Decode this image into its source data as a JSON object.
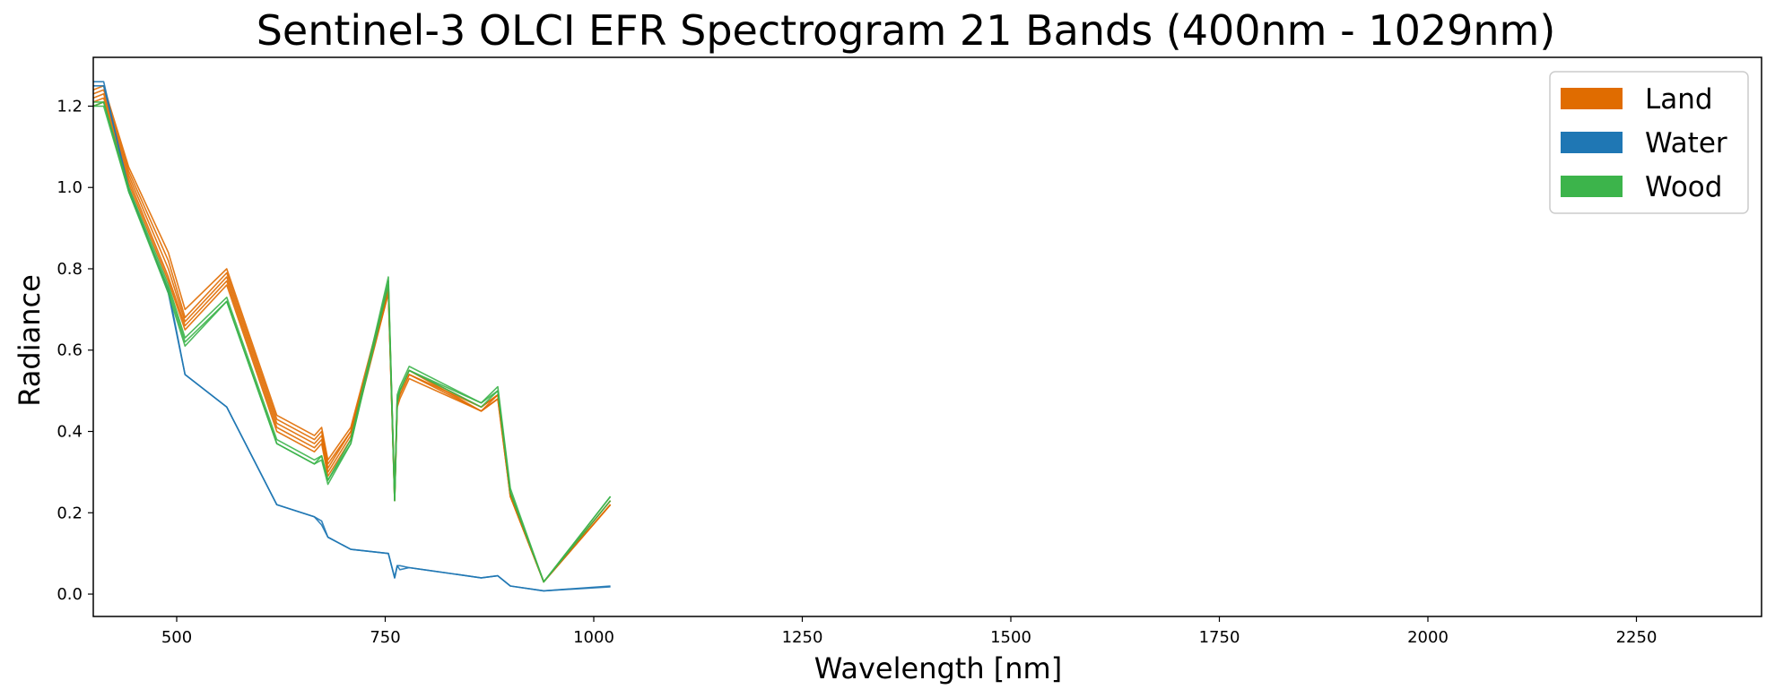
{
  "chart_data": {
    "type": "line",
    "title": "Sentinel-3 OLCI EFR Spectrogram 21 Bands (400nm - 1029nm)",
    "xlabel": "Wavelength [nm]",
    "ylabel": "Radiance",
    "xlim": [
      400,
      2400
    ],
    "ylim": [
      -0.055,
      1.32
    ],
    "x_ticks": [
      500,
      750,
      1000,
      1250,
      1500,
      1750,
      2000,
      2250
    ],
    "y_ticks": [
      0.0,
      0.2,
      0.4,
      0.6,
      0.8,
      1.0,
      1.2
    ],
    "x_tick_labels": [
      "500",
      "750",
      "1000",
      "1250",
      "1500",
      "1750",
      "2000",
      "2250"
    ],
    "y_tick_labels": [
      "0.0",
      "0.2",
      "0.4",
      "0.6",
      "0.8",
      "1.0",
      "1.2"
    ],
    "grid": false,
    "legend_position": "top-right",
    "x": [
      400,
      412.5,
      442.5,
      490,
      510,
      560,
      620,
      665,
      673.75,
      681.25,
      708.75,
      753.75,
      761.25,
      764.375,
      767.5,
      778.75,
      865,
      885,
      900,
      940,
      1020
    ],
    "groups": [
      {
        "name": "Land",
        "color": "#e06c00",
        "series": [
          [
            1.24,
            1.25,
            1.05,
            0.84,
            0.7,
            0.8,
            0.44,
            0.39,
            0.41,
            0.33,
            0.41,
            0.76,
            0.25,
            0.48,
            0.5,
            0.55,
            0.45,
            0.49,
            0.25,
            0.03,
            0.23
          ],
          [
            1.23,
            1.24,
            1.04,
            0.82,
            0.68,
            0.79,
            0.43,
            0.38,
            0.4,
            0.32,
            0.4,
            0.75,
            0.24,
            0.48,
            0.5,
            0.55,
            0.46,
            0.49,
            0.25,
            0.03,
            0.23
          ],
          [
            1.22,
            1.23,
            1.03,
            0.8,
            0.67,
            0.78,
            0.42,
            0.37,
            0.39,
            0.31,
            0.4,
            0.75,
            0.24,
            0.47,
            0.49,
            0.54,
            0.45,
            0.48,
            0.24,
            0.03,
            0.22
          ],
          [
            1.21,
            1.22,
            1.02,
            0.78,
            0.66,
            0.77,
            0.41,
            0.36,
            0.38,
            0.3,
            0.39,
            0.74,
            0.23,
            0.47,
            0.49,
            0.54,
            0.46,
            0.49,
            0.24,
            0.03,
            0.22
          ],
          [
            1.2,
            1.21,
            1.01,
            0.77,
            0.65,
            0.76,
            0.4,
            0.35,
            0.37,
            0.29,
            0.38,
            0.74,
            0.23,
            0.46,
            0.48,
            0.53,
            0.45,
            0.48,
            0.24,
            0.03,
            0.22
          ]
        ]
      },
      {
        "name": "Water",
        "color": "#1f77b4",
        "series": [
          [
            1.25,
            1.25,
            1.0,
            0.74,
            0.54,
            0.46,
            0.22,
            0.19,
            0.17,
            0.14,
            0.11,
            0.1,
            0.04,
            0.07,
            0.07,
            0.065,
            0.04,
            0.045,
            0.02,
            0.008,
            0.018
          ],
          [
            1.26,
            1.26,
            0.99,
            0.75,
            0.54,
            0.46,
            0.22,
            0.19,
            0.18,
            0.14,
            0.11,
            0.1,
            0.04,
            0.07,
            0.06,
            0.065,
            0.04,
            0.045,
            0.02,
            0.008,
            0.02
          ]
        ]
      },
      {
        "name": "Wood",
        "color": "#3cb44b",
        "series": [
          [
            1.21,
            1.21,
            1.0,
            0.76,
            0.63,
            0.73,
            0.38,
            0.33,
            0.34,
            0.28,
            0.38,
            0.78,
            0.24,
            0.49,
            0.51,
            0.56,
            0.47,
            0.51,
            0.26,
            0.03,
            0.24
          ],
          [
            1.2,
            1.21,
            0.99,
            0.75,
            0.62,
            0.72,
            0.37,
            0.32,
            0.33,
            0.27,
            0.37,
            0.77,
            0.23,
            0.48,
            0.5,
            0.55,
            0.46,
            0.5,
            0.25,
            0.03,
            0.24
          ],
          [
            1.2,
            1.2,
            0.99,
            0.74,
            0.61,
            0.72,
            0.37,
            0.32,
            0.34,
            0.28,
            0.37,
            0.76,
            0.23,
            0.47,
            0.5,
            0.55,
            0.47,
            0.5,
            0.25,
            0.03,
            0.23
          ]
        ]
      }
    ]
  }
}
